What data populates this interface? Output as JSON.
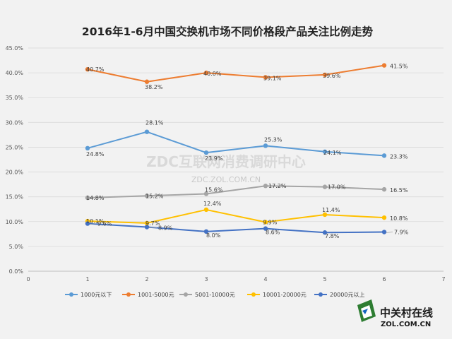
{
  "chart_data": {
    "type": "line",
    "title": "2016年1-6月中国交换机市场不同价格段产品关注比例走势",
    "x": [
      1,
      2,
      3,
      4,
      5,
      6
    ],
    "xlim": [
      0,
      7
    ],
    "x_ticks": [
      "0",
      "1",
      "2",
      "3",
      "4",
      "5",
      "6",
      "7"
    ],
    "ylim": [
      0,
      45
    ],
    "y_ticks": [
      "0.0%",
      "5.0%",
      "10.0%",
      "15.0%",
      "20.0%",
      "25.0%",
      "30.0%",
      "35.0%",
      "40.0%",
      "45.0%"
    ],
    "grid": true,
    "legend_position": "bottom",
    "series": [
      {
        "name": "1000元以下",
        "color": "#5b9bd5",
        "values": [
          24.8,
          28.1,
          23.9,
          25.3,
          24.1,
          23.3
        ],
        "labels": [
          "24.8%",
          "28.1%",
          "23.9%",
          "25.3%",
          "24.1%",
          "23.3%"
        ]
      },
      {
        "name": "1001-5000元",
        "color": "#ed7d31",
        "values": [
          40.7,
          38.2,
          40.0,
          39.1,
          39.6,
          41.5
        ],
        "labels": [
          "40.7%",
          "38.2%",
          "40.0%",
          "39.1%",
          "39.6%",
          "41.5%"
        ]
      },
      {
        "name": "5001-10000元",
        "color": "#a5a5a5",
        "values": [
          14.8,
          15.2,
          15.6,
          17.2,
          17.0,
          16.5
        ],
        "labels": [
          "14.8%",
          "15.2%",
          "15.6%",
          "17.2%",
          "17.0%",
          "16.5%"
        ]
      },
      {
        "name": "10001-20000元",
        "color": "#ffc000",
        "values": [
          10.1,
          9.7,
          12.4,
          9.9,
          11.4,
          10.8
        ],
        "labels": [
          "10.1%",
          "9.7%",
          "12.4%",
          "9.9%",
          "11.4%",
          "10.8%"
        ]
      },
      {
        "name": "20000元以上",
        "color": "#4472c4",
        "values": [
          9.6,
          8.9,
          8.0,
          8.6,
          7.8,
          7.9
        ],
        "labels": [
          "9.6%",
          "8.9%",
          "8.0%",
          "8.6%",
          "7.8%",
          "7.9%"
        ]
      }
    ]
  },
  "watermark": {
    "main": "ZDC互联网消费调研中心",
    "sub": "ZDC.ZOL.COM.CN"
  },
  "logo": {
    "name": "中关村在线",
    "domain": "ZOL.COM.CN"
  }
}
